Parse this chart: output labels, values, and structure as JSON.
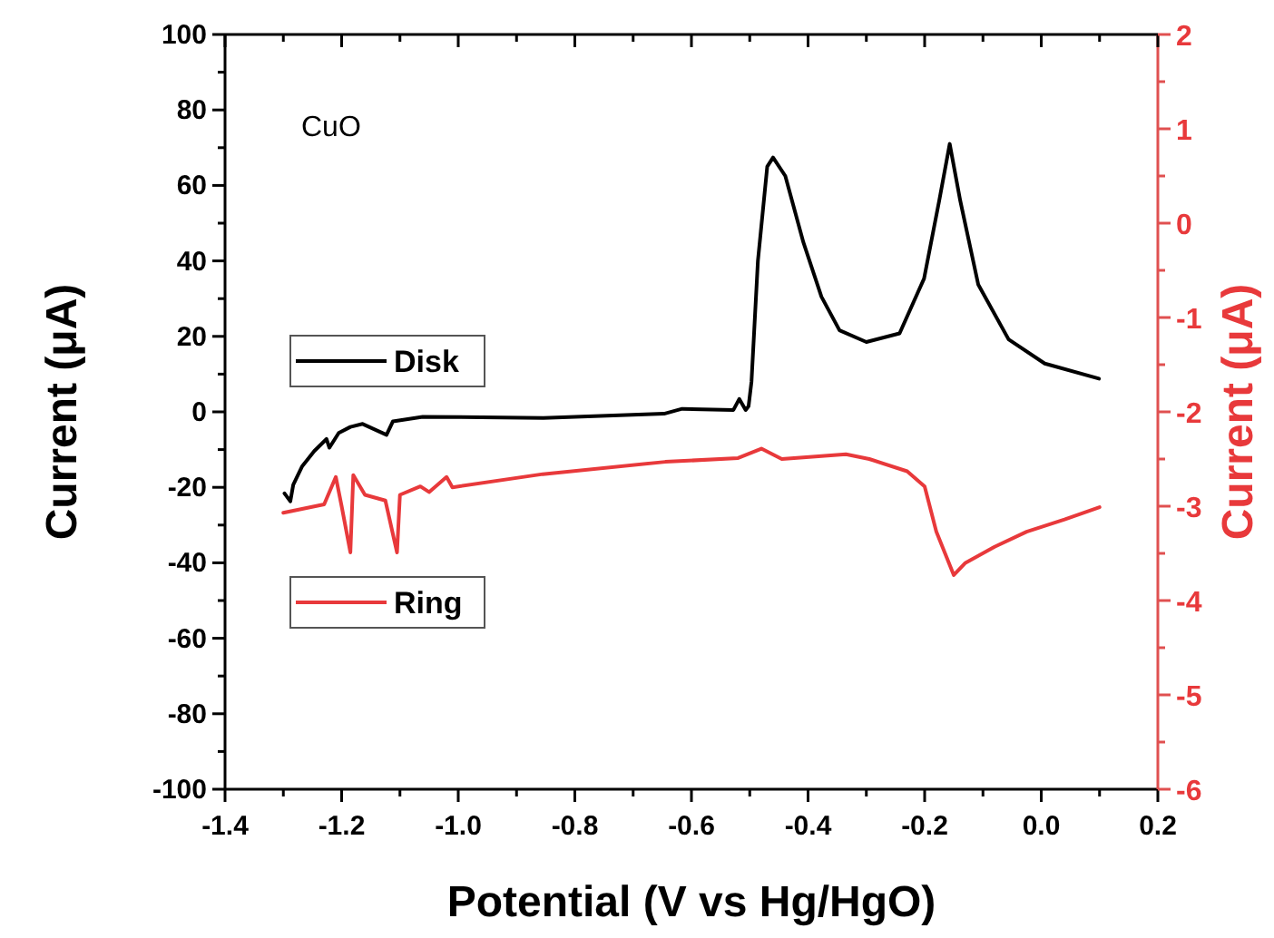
{
  "chart_data": {
    "type": "line",
    "xlabel": "Potential (V vs Hg/HgO)",
    "ylabel": "Current (μA)",
    "y2label": "Current (μA)",
    "annotations": [
      "CuO"
    ],
    "xlim": [
      -1.4,
      0.2
    ],
    "xticks": [
      -1.4,
      {
        "value": -1.3,
        "label": null
      },
      -1.2,
      {
        "value": -1.1,
        "label": null
      },
      {
        "value": -1.0,
        "label": "-1.0"
      },
      {
        "value": -0.9,
        "label": null
      },
      -0.8,
      {
        "value": -0.7,
        "label": null
      },
      -0.6,
      {
        "value": -0.5,
        "label": null
      },
      -0.4,
      {
        "value": -0.3,
        "label": null
      },
      -0.2,
      {
        "value": -0.1,
        "label": null
      },
      {
        "value": 0,
        "label": "0.0"
      },
      {
        "value": 0.1,
        "label": null
      },
      0.2
    ],
    "ylim": [
      -100,
      100
    ],
    "yticks": [
      -100,
      {
        "value": -90,
        "label": null
      },
      -80,
      {
        "value": -70,
        "label": null
      },
      -60,
      {
        "value": -50,
        "label": null
      },
      -40,
      {
        "value": -30,
        "label": null
      },
      -20,
      {
        "value": -10,
        "label": null
      },
      0,
      {
        "value": 10,
        "label": null
      },
      20,
      {
        "value": 30,
        "label": null
      },
      40,
      {
        "value": 50,
        "label": null
      },
      60,
      {
        "value": 70,
        "label": null
      },
      80,
      {
        "value": 90,
        "label": null
      },
      100
    ],
    "y2lim": [
      -6,
      2
    ],
    "y2ticks": [
      -6,
      {
        "value": -5.5,
        "label": null
      },
      -5,
      {
        "value": -4.5,
        "label": null
      },
      -4,
      {
        "value": -3.5,
        "label": null
      },
      -3,
      {
        "value": -2.5,
        "label": null
      },
      -2,
      {
        "value": -1.5,
        "label": null
      },
      -1,
      {
        "value": -0.5,
        "label": null
      },
      0,
      {
        "value": 0.5,
        "label": null
      },
      1,
      {
        "value": 1.5,
        "label": null
      },
      2
    ],
    "legend": "left",
    "grid": false,
    "marker": "none",
    "line_style": "solid",
    "series": [
      {
        "name": "Disk",
        "color": "#000000",
        "axis": "y",
        "x": [
          -1.298,
          -1.288,
          -1.283,
          -1.268,
          -1.247,
          -1.226,
          -1.221,
          -1.205,
          -1.185,
          -1.164,
          -1.123,
          -1.112,
          -1.061,
          -0.854,
          -0.647,
          -0.616,
          -0.528,
          -0.518,
          -0.507,
          -0.502,
          -0.497,
          -0.486,
          -0.47,
          -0.46,
          -0.439,
          -0.408,
          -0.377,
          -0.346,
          -0.3,
          -0.243,
          -0.201,
          -0.175,
          -0.157,
          -0.139,
          -0.108,
          -0.056,
          0.006,
          0.099
        ],
        "values": [
          -21.6,
          -23.7,
          -19.3,
          -14.5,
          -10.4,
          -7.2,
          -9.5,
          -5.6,
          -4.0,
          -3.2,
          -6.1,
          -2.5,
          -1.3,
          -1.6,
          -0.5,
          0.8,
          0.5,
          3.4,
          0.5,
          1.5,
          8.0,
          40,
          65,
          67.4,
          62.5,
          44.9,
          30.5,
          21.6,
          18.5,
          20.8,
          35.3,
          56,
          71,
          56,
          33.7,
          19.2,
          12.8,
          8.8
        ]
      },
      {
        "name": "Ring",
        "color": "#e8393b",
        "axis": "y2",
        "x": [
          -1.3,
          -1.23,
          -1.21,
          -1.2,
          -1.185,
          -1.18,
          -1.16,
          -1.125,
          -1.105,
          -1.1,
          -1.065,
          -1.05,
          -1.02,
          -1.01,
          -0.855,
          -0.645,
          -0.52,
          -0.48,
          -0.445,
          -0.335,
          -0.295,
          -0.23,
          -0.2,
          -0.18,
          -0.15,
          -0.13,
          -0.08,
          -0.025,
          0.04,
          0.1
        ],
        "values": [
          -3.07,
          -2.98,
          -2.69,
          -3.0,
          -3.49,
          -2.67,
          -2.88,
          -2.94,
          -3.49,
          -2.88,
          -2.79,
          -2.85,
          -2.69,
          -2.8,
          -2.66,
          -2.53,
          -2.49,
          -2.39,
          -2.5,
          -2.45,
          -2.5,
          -2.63,
          -2.79,
          -3.27,
          -3.73,
          -3.6,
          -3.43,
          -3.27,
          -3.14,
          -3.01
        ]
      }
    ]
  }
}
